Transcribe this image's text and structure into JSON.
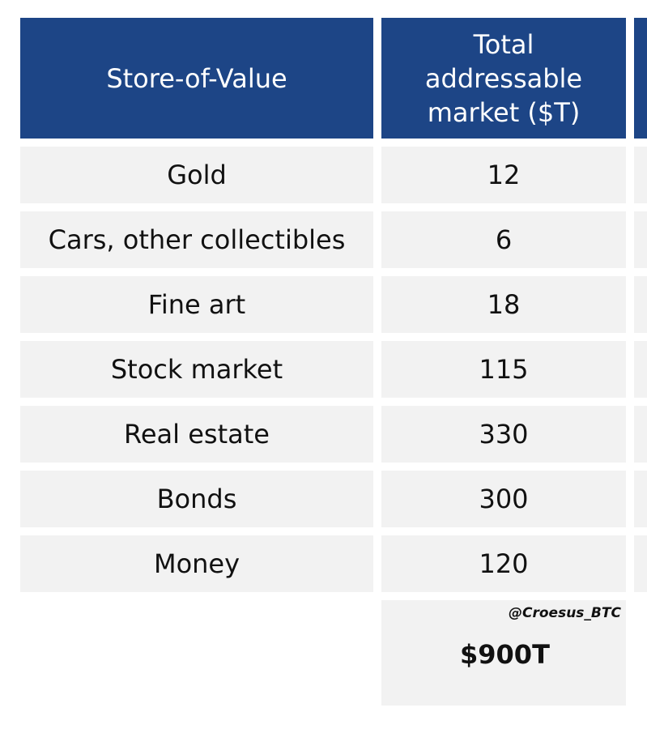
{
  "table": {
    "headers": {
      "col1": "Store-of-Value",
      "col2_lines": [
        "Total",
        "addressable",
        "market ($T)"
      ]
    },
    "rows": [
      {
        "label": "Gold",
        "value": "12"
      },
      {
        "label": "Cars, other collectibles",
        "value": "6"
      },
      {
        "label": "Fine art",
        "value": "18"
      },
      {
        "label": "Stock market",
        "value": "115"
      },
      {
        "label": "Real estate",
        "value": "330"
      },
      {
        "label": "Bonds",
        "value": "300"
      },
      {
        "label": "Money",
        "value": "120"
      }
    ],
    "total": {
      "handle": "@Croesus_BTC",
      "value": "$900T"
    }
  },
  "colors": {
    "header_bg": "#1d4586",
    "cell_bg": "#f2f2f2",
    "header_text": "#ffffff",
    "body_text": "#111111"
  }
}
